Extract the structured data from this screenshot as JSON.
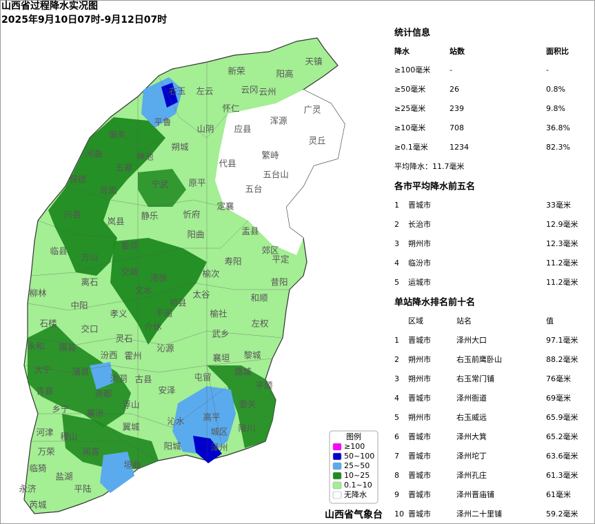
{
  "header": {
    "title": "山西省过程降水实况图",
    "subtitle": "2025年9月10日07时-9月12日07时"
  },
  "map": {
    "labels": [
      "天镇",
      "阳高",
      "新荣",
      "左云",
      "云冈",
      "云州",
      "右玉",
      "平鲁",
      "怀仁",
      "浑源",
      "广灵",
      "山阴",
      "应县",
      "灵丘",
      "偏关",
      "朔城",
      "繁峙",
      "神池",
      "河曲",
      "代县",
      "五寨",
      "五台山",
      "保德",
      "岢岚",
      "宁武",
      "原平",
      "五台",
      "定襄",
      "兴县",
      "静乐",
      "忻府",
      "岚县",
      "盂县",
      "阳曲",
      "临县",
      "方山",
      "娄烦",
      "寿阳",
      "平定",
      "郊区",
      "柳林",
      "离石",
      "交城",
      "清徐",
      "榆次",
      "昔阳",
      "中阳",
      "文水",
      "太谷",
      "和顺",
      "石楼",
      "交口",
      "孝义",
      "平遥",
      "祁县",
      "榆社",
      "左权",
      "永和",
      "隰县",
      "灵石",
      "介休",
      "沁源",
      "武乡",
      "襄垣",
      "黎城",
      "大宁",
      "蒲县",
      "汾西",
      "霍州",
      "洪洞",
      "古县",
      "安泽",
      "屯留",
      "潞城",
      "平顺",
      "吉县",
      "乡宁",
      "尧都",
      "浮山",
      "沁水",
      "高平",
      "壶关",
      "陵川",
      "河津",
      "稷山",
      "襄汾",
      "翼城",
      "泽州",
      "阳城",
      "城区",
      "万荣",
      "闻喜",
      "垣曲",
      "临猗",
      "盐湖",
      "永济",
      "芮城",
      "平陆"
    ]
  },
  "legend": {
    "title": "图例",
    "items": [
      {
        "label": "≥100",
        "color": "#ff00ff"
      },
      {
        "label": "50~100",
        "color": "#0000cc"
      },
      {
        "label": "25~50",
        "color": "#5aaaee"
      },
      {
        "label": "10~25",
        "color": "#1f8a1f"
      },
      {
        "label": "0.1~10",
        "color": "#a4ee94"
      },
      {
        "label": "无降水",
        "color": "#ffffff"
      }
    ]
  },
  "stats": {
    "title": "统计信息",
    "columns": [
      "降水",
      "站数",
      "面积比"
    ],
    "rows": [
      [
        "≥100毫米",
        "-",
        "-"
      ],
      [
        "≥50毫米",
        "26",
        "0.8%"
      ],
      [
        "≥25毫米",
        "239",
        "9.8%"
      ],
      [
        "≥10毫米",
        "708",
        "36.8%"
      ],
      [
        "≥0.1毫米",
        "1234",
        "82.3%"
      ]
    ],
    "average": "平均降水：11.7毫米"
  },
  "city_top5": {
    "title": "各市平均降水前五名",
    "rows": [
      [
        "1",
        "晋城市",
        "33毫米"
      ],
      [
        "2",
        "长治市",
        "12.9毫米"
      ],
      [
        "3",
        "朔州市",
        "12.3毫米"
      ],
      [
        "4",
        "临汾市",
        "11.2毫米"
      ],
      [
        "5",
        "运城市",
        "11.2毫米"
      ]
    ]
  },
  "station_top10": {
    "title": "单站降水排名前十名",
    "columns": [
      "区域",
      "站名",
      "值"
    ],
    "rows": [
      [
        "1",
        "晋城市",
        "泽州大口",
        "97.1毫米"
      ],
      [
        "2",
        "朔州市",
        "右玉前鹰卧山",
        "88.2毫米"
      ],
      [
        "3",
        "朔州市",
        "右玉常门铺",
        "76毫米"
      ],
      [
        "4",
        "晋城市",
        "泽州衙道",
        "69毫米"
      ],
      [
        "5",
        "朔州市",
        "右玉威远",
        "65.9毫米"
      ],
      [
        "6",
        "晋城市",
        "泽州大箕",
        "65.2毫米"
      ],
      [
        "7",
        "晋城市",
        "泽州坨丁",
        "63.6毫米"
      ],
      [
        "8",
        "晋城市",
        "泽州孔庄",
        "61.3毫米"
      ],
      [
        "9",
        "晋城市",
        "泽州晋庙铺",
        "61毫米"
      ],
      [
        "10",
        "晋城市",
        "泽州二十里铺",
        "59.2毫米"
      ]
    ]
  },
  "footer": {
    "source": "山西省气象台"
  }
}
